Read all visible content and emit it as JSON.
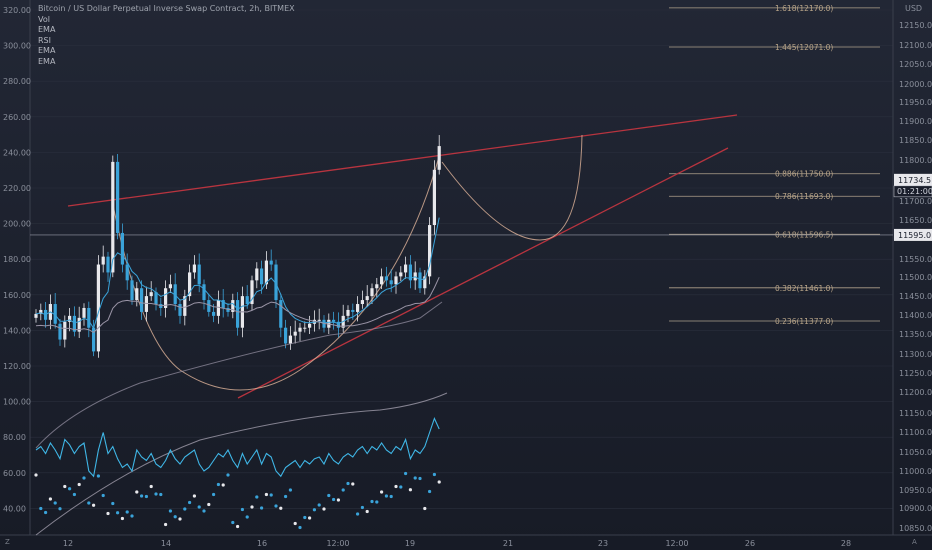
{
  "legend": {
    "title": "Bitcoin / US Dollar Perpetual Inverse Swap Contract, 2h, BITMEX",
    "indicators": [
      "Vol",
      "EMA",
      "RSI",
      "EMA",
      "EMA"
    ]
  },
  "axis": {
    "currency": "USD",
    "left_ticks": [
      "320.00",
      "300.00",
      "280.00",
      "260.00",
      "240.00",
      "220.00",
      "200.00",
      "180.00",
      "160.00",
      "140.00",
      "120.00",
      "100.00",
      "80.00",
      "60.00",
      "40.00"
    ],
    "right_ticks": [
      "12150.0",
      "12100.0",
      "12050.0",
      "12000.0",
      "11950.0",
      "11900.0",
      "11850.0",
      "11800.0",
      "11700.0",
      "11650.0",
      "11550.0",
      "11500.0",
      "11450.0",
      "11400.0",
      "11350.0",
      "11300.0",
      "11250.0",
      "11200.0",
      "11150.0",
      "11100.0",
      "11050.0",
      "11000.0",
      "10950.0",
      "10900.0",
      "10850.0"
    ],
    "bottom_ticks": [
      "12",
      "14",
      "16",
      "12:00",
      "19",
      "21",
      "23",
      "12:00",
      "26",
      "28"
    ],
    "corner_left": "Z",
    "corner_right": "A"
  },
  "price_tags": {
    "last": "11734.5",
    "countdown": "01:21:00",
    "line": "11595.0"
  },
  "colors": {
    "up": "#e8e8ec",
    "down": "#3aa3d9",
    "ema_fast": "#3aa3d9",
    "ema_slow": "#9a94a6",
    "trend": "#b8343f",
    "arc": "#e0b49a",
    "fib": "#c9b79c",
    "rsi": "#3fb6e6"
  },
  "chart_data": {
    "type": "candlestick",
    "title": "Bitcoin / US Dollar Perpetual Inverse Swap Contract, 2h, BITMEX",
    "ylabel": "USD",
    "ylim": [
      10835,
      12190
    ],
    "fib_levels": [
      {
        "label": "1.618(12170.0)",
        "value": 12170.0
      },
      {
        "label": "1.445(12071.0)",
        "value": 12071.0
      },
      {
        "label": "0.886(11750.0)",
        "value": 11750.0
      },
      {
        "label": "0.786(11693.0)",
        "value": 11693.0
      },
      {
        "label": "0.618(11596.5)",
        "value": 11596.5
      },
      {
        "label": "0.382(11461.0)",
        "value": 11461.0
      },
      {
        "label": "0.236(11377.0)",
        "value": 11377.0
      }
    ],
    "closes": [
      11395,
      11405,
      11380,
      11420,
      11370,
      11330,
      11375,
      11390,
      11350,
      11385,
      11410,
      11360,
      11300,
      11520,
      11540,
      11500,
      11780,
      11600,
      11520,
      11480,
      11430,
      11460,
      11400,
      11440,
      11450,
      11420,
      11410,
      11460,
      11470,
      11420,
      11390,
      11440,
      11500,
      11520,
      11470,
      11430,
      11400,
      11390,
      11430,
      11410,
      11400,
      11430,
      11360,
      11440,
      11420,
      11480,
      11510,
      11470,
      11530,
      11520,
      11430,
      11360,
      11320,
      11340,
      11350,
      11360,
      11360,
      11370,
      11380,
      11380,
      11360,
      11380,
      11375,
      11360,
      11390,
      11405,
      11400,
      11420,
      11430,
      11440,
      11460,
      11470,
      11490,
      11480,
      11470,
      11490,
      11500,
      11520,
      11480,
      11500,
      11460,
      11490,
      11620,
      11760,
      11820
    ]
  }
}
